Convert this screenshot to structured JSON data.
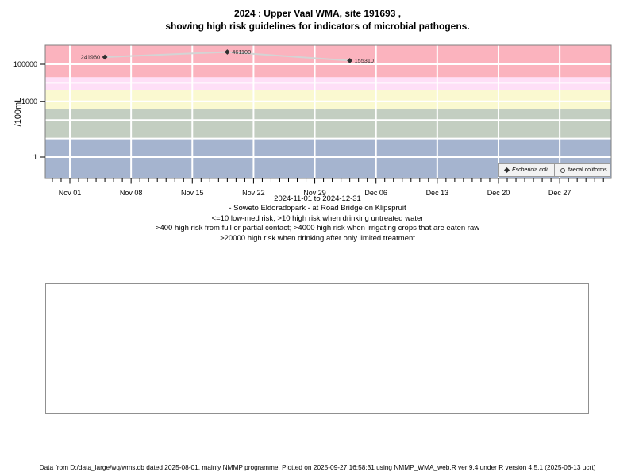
{
  "title": {
    "line1": "2024 : Upper Vaal WMA, site 191693 ,",
    "line2": "showing high risk guidelines for indicators of microbial pathogens."
  },
  "caption": {
    "range_label": "2024-11-01 to 2024-12-31",
    "site": "- Soweto Eldoradopark - at Road Bridge on Klipspruit",
    "guidelines": [
      "<=10 low-med risk; >10 high risk when drinking untreated water",
      ">400 high risk from full or partial contact; >4000 high risk when irrigating crops that are eaten raw",
      ">20000 high risk when drinking after only limited treatment"
    ]
  },
  "legend": {
    "items": [
      {
        "label": "Eschericia coli",
        "marker": "filled-diamond"
      },
      {
        "label": "faecal coliforms",
        "marker": "open-circle"
      }
    ]
  },
  "footer": {
    "text": "Data from D:/data_large/wq/wms.db dated 2025-08-01, mainly NMMP programme. Plotted on 2025-09-27 16:58:31 using NMMP_WMA_web.R ver 9.4 under R version 4.5.1 (2025-06-13 ucrt)"
  },
  "colors": {
    "band_red": "#FBB3BE",
    "band_pink": "#FEDFF7",
    "band_yellow": "#FAF9D0",
    "band_green": "#C3CEC1",
    "band_blue": "#A5B4CF",
    "gridline": "#FFFFFF",
    "plot_border": "#7F7F7F",
    "series_line": "#D4D4D4",
    "marker": "#2F2F2F",
    "legend_bg": "#F2F2F2",
    "legend_border": "#9A9A9A",
    "panel_border": "#909090"
  },
  "chart_data": {
    "type": "scatter",
    "title": "2024 : Upper Vaal WMA, site 191693 , showing high risk guidelines for indicators of microbial pathogens.",
    "ylabel": "/100mL",
    "y_scale": "log10",
    "ylim": [
      0.07,
      1100000
    ],
    "yticks": [
      100000,
      1000,
      1
    ],
    "ytick_labels": [
      "100000",
      "1000",
      "1"
    ],
    "x_range": [
      "2024-11-01",
      "2024-12-31"
    ],
    "xtick_dates": [
      "2024-11-01",
      "2024-11-08",
      "2024-11-15",
      "2024-11-22",
      "2024-11-29",
      "2024-12-06",
      "2024-12-13",
      "2024-12-20",
      "2024-12-27"
    ],
    "xtick_labels": [
      "Nov 01",
      "Nov 08",
      "Nov 15",
      "Nov 22",
      "Nov 29",
      "Dec 06",
      "Dec 13",
      "Dec 20",
      "Dec 27"
    ],
    "grid": true,
    "legend_position": "bottom-right",
    "series": [
      {
        "name": "Eschericia coli",
        "marker": "filled-diamond",
        "points": [
          {
            "date": "2024-11-05",
            "value": 241960,
            "label": "241960",
            "label_side": "left"
          },
          {
            "date": "2024-11-19",
            "value": 461100,
            "label": "461100",
            "label_side": "right"
          },
          {
            "date": "2024-12-03",
            "value": 155310,
            "label": "155310",
            "label_side": "right"
          }
        ]
      },
      {
        "name": "faecal coliforms",
        "marker": "open-circle",
        "points": []
      }
    ],
    "risk_bands": [
      {
        "band": "high-risk-limited-treatment",
        "min": 20000,
        "max": null,
        "label": ">20000 high risk when drinking after only limited treatment",
        "color_key": "band_red"
      },
      {
        "band": "high-risk-irrigation",
        "min": 4000,
        "max": 20000,
        "label": ">4000 high risk when irrigating crops that are eaten raw",
        "color_key": "band_pink"
      },
      {
        "band": "high-risk-contact",
        "min": 400,
        "max": 4000,
        "label": ">400 high risk from full or partial contact",
        "color_key": "band_yellow"
      },
      {
        "band": "high-risk-untreated-water",
        "min": 10,
        "max": 400,
        "label": ">10 high risk when drinking untreated water",
        "color_key": "band_green"
      },
      {
        "band": "low-med-risk",
        "min": null,
        "max": 10,
        "label": "<=10 low-med risk",
        "color_key": "band_blue"
      }
    ]
  }
}
